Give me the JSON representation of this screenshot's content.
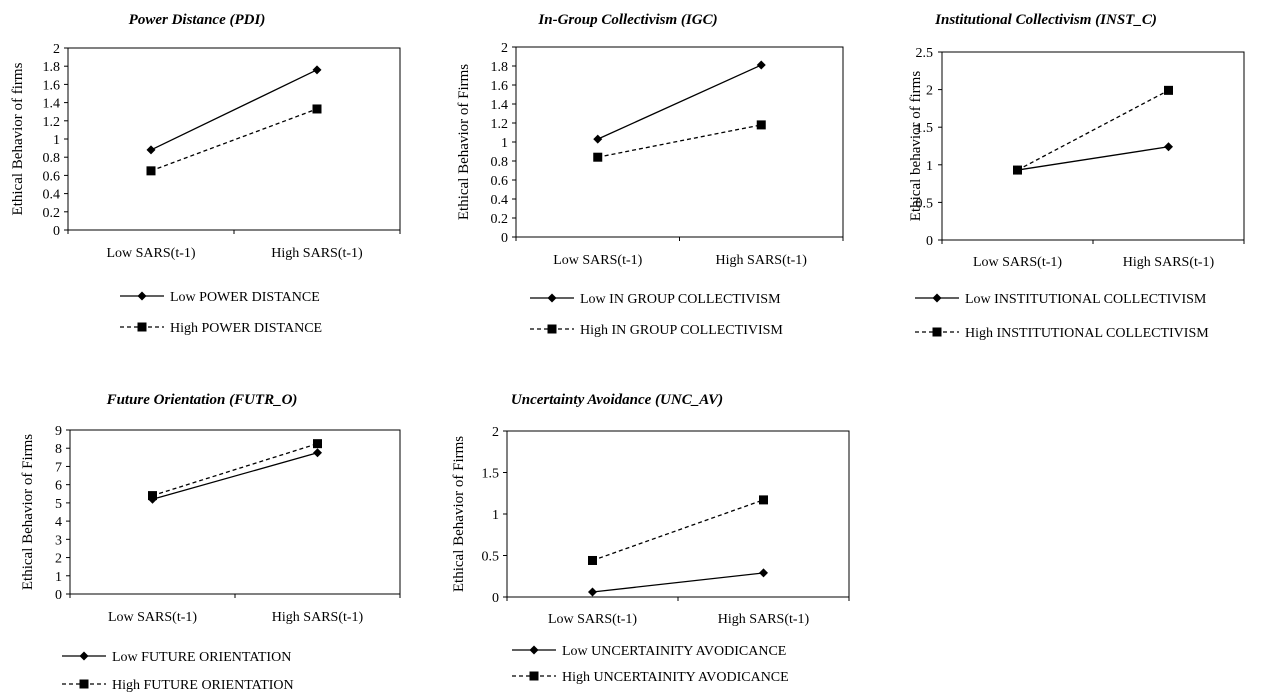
{
  "chart_data": [
    {
      "type": "line",
      "title": "Power Distance (PDI)",
      "xlabel": "",
      "ylabel": "Ethical Behavior of firms",
      "categories": [
        "Low SARS(t-1)",
        "High SARS(t-1)"
      ],
      "ylim": [
        0,
        2
      ],
      "yticks": [
        "0",
        "0.2",
        "0.4",
        "0.6",
        "0.8",
        "1",
        "1.2",
        "1.4",
        "1.6",
        "1.8",
        "2"
      ],
      "series": [
        {
          "name": "Low POWER DISTANCE",
          "values": [
            0.88,
            1.76
          ],
          "marker": "diamond",
          "dash": "solid"
        },
        {
          "name": "High POWER DISTANCE",
          "values": [
            0.65,
            1.33
          ],
          "marker": "square",
          "dash": "dashed"
        }
      ],
      "legend": "bottom"
    },
    {
      "type": "line",
      "title": "In-Group Collectivism (IGC)",
      "xlabel": "",
      "ylabel": "Ethical Behavior of Firms",
      "categories": [
        "Low SARS(t-1)",
        "High SARS(t-1)"
      ],
      "ylim": [
        0,
        2
      ],
      "yticks": [
        "0",
        "0.2",
        "0.4",
        "0.6",
        "0.8",
        "1",
        "1.2",
        "1.4",
        "1.6",
        "1.8",
        "2"
      ],
      "series": [
        {
          "name": "Low IN GROUP COLLECTIVISM",
          "values": [
            1.03,
            1.81
          ],
          "marker": "diamond",
          "dash": "solid"
        },
        {
          "name": "High IN GROUP COLLECTIVISM",
          "values": [
            0.84,
            1.18
          ],
          "marker": "square",
          "dash": "dashed"
        }
      ],
      "legend": "bottom"
    },
    {
      "type": "line",
      "title": "Institutional Collectivism (INST_C)",
      "xlabel": "",
      "ylabel": "Ethical behavior of firms",
      "categories": [
        "Low SARS(t-1)",
        "High SARS(t-1)"
      ],
      "ylim": [
        0,
        2.5
      ],
      "yticks": [
        "0",
        "0.5",
        "1",
        "1.5",
        "2",
        "2.5"
      ],
      "series": [
        {
          "name": "Low INSTITUTIONAL COLLECTIVISM",
          "values": [
            0.93,
            1.24
          ],
          "marker": "diamond",
          "dash": "solid"
        },
        {
          "name": "High INSTITUTIONAL COLLECTIVISM",
          "values": [
            0.93,
            1.99
          ],
          "marker": "square",
          "dash": "dashed"
        }
      ],
      "legend": "bottom"
    },
    {
      "type": "line",
      "title": "Future Orientation (FUTR_O)",
      "xlabel": "",
      "ylabel": "Ethical Behavior of Firms",
      "categories": [
        "Low SARS(t-1)",
        "High SARS(t-1)"
      ],
      "ylim": [
        0,
        9
      ],
      "yticks": [
        "0",
        "1",
        "2",
        "3",
        "4",
        "5",
        "6",
        "7",
        "8",
        "9"
      ],
      "series": [
        {
          "name": "Low FUTURE ORIENTATION",
          "values": [
            5.2,
            7.75
          ],
          "marker": "diamond",
          "dash": "solid"
        },
        {
          "name": "High FUTURE ORIENTATION",
          "values": [
            5.4,
            8.25
          ],
          "marker": "square",
          "dash": "dashed"
        }
      ],
      "legend": "bottom"
    },
    {
      "type": "line",
      "title": "Uncertainty Avoidance (UNC_AV)",
      "xlabel": "",
      "ylabel": "Ethical Behavior of Firms",
      "categories": [
        "Low SARS(t-1)",
        "High SARS(t-1)"
      ],
      "ylim": [
        0,
        2
      ],
      "yticks": [
        "0",
        "0.5",
        "1",
        "1.5",
        "2"
      ],
      "series": [
        {
          "name": "Low UNCERTAINITY AVODICANCE",
          "values": [
            0.06,
            0.29
          ],
          "marker": "diamond",
          "dash": "solid"
        },
        {
          "name": "High UNCERTAINITY AVODICANCE",
          "values": [
            0.44,
            1.17
          ],
          "marker": "square",
          "dash": "dashed"
        }
      ],
      "legend": "bottom"
    }
  ]
}
